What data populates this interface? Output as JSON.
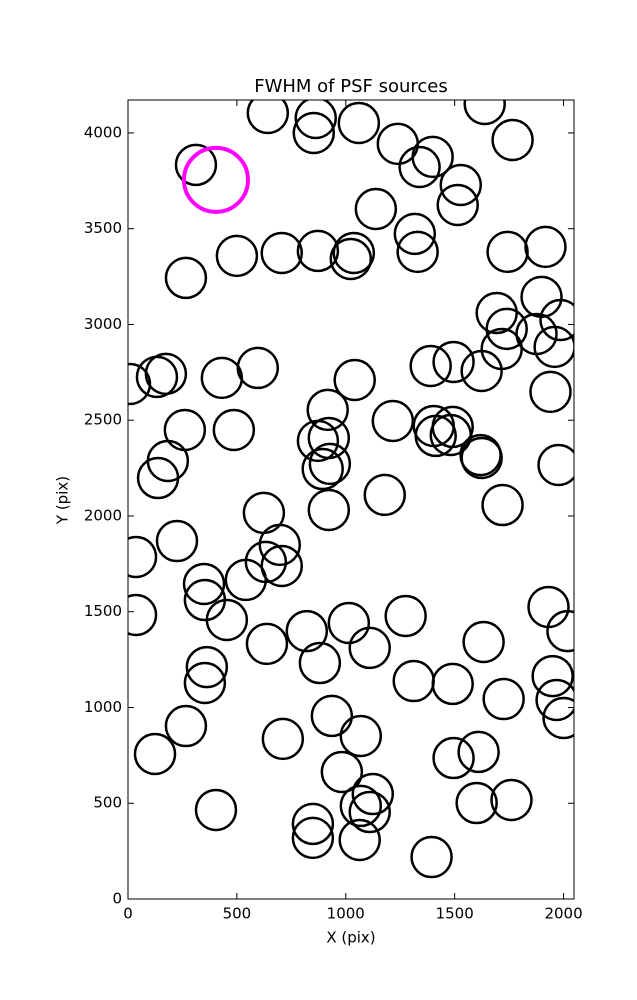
{
  "chart_data": {
    "type": "scatter",
    "title": "FWHM of PSF sources",
    "x_label": "X (pix)",
    "y_label": "Y (pix)",
    "xlim": [
      0,
      2048
    ],
    "ylim": [
      0,
      4172
    ],
    "xticks": [
      0,
      500,
      1000,
      1500,
      2000
    ],
    "yticks": [
      0,
      500,
      1000,
      1500,
      2000,
      2500,
      3000,
      3500,
      4000
    ],
    "series": [
      {
        "color": "#000000",
        "x": [
          312,
          642,
          862,
          853,
          1060,
          1638,
          1766,
          1239,
          1339,
          1399,
          1528,
          1514,
          1138,
          1317,
          1330,
          500,
          706,
          872,
          1037,
          1023,
          266,
          1743,
          1917,
          1899,
          1693,
          1739,
          1876,
          1986,
          1959,
          1716,
          1624,
          1495,
          1390,
          1041,
          596,
          431,
          174,
          133,
          9,
          1940,
          261,
          486,
          917,
          922,
          872,
          927,
          894,
          922,
          1216,
          1404,
          1491,
          1413,
          1482,
          1619,
          1624,
          183,
          138,
          1977,
          1720,
          1179,
          624,
          697,
          633,
          706,
          37,
          225,
          349,
          353,
          541,
          454,
          37,
          821,
          1014,
          1110,
          1275,
          1633,
          1931,
          2018,
          362,
          353,
          881,
          638,
          1312,
          1491,
          1725,
          1950,
          1968,
          2000,
          266,
          124,
          711,
          936,
          1069,
          982,
          1124,
          1069,
          1110,
          1064,
          849,
          849,
          404,
          1495,
          1610,
          1601,
          1761,
          1394
        ],
        "y": [
          3833,
          4104,
          4078,
          4000,
          4052,
          4151,
          3963,
          3943,
          3822,
          3875,
          3728,
          3624,
          3603,
          3473,
          3379,
          3358,
          3373,
          3384,
          3373,
          3342,
          3243,
          3379,
          3405,
          3144,
          3060,
          2977,
          2950,
          3023,
          2883,
          2872,
          2757,
          2804,
          2783,
          2710,
          2773,
          2721,
          2742,
          2726,
          2689,
          2648,
          2449,
          2449,
          2554,
          2407,
          2392,
          2272,
          2245,
          2031,
          2496,
          2470,
          2465,
          2418,
          2423,
          2318,
          2303,
          2287,
          2198,
          2266,
          2057,
          2110,
          2016,
          1849,
          1760,
          1739,
          1786,
          1869,
          1645,
          1561,
          1666,
          1457,
          1483,
          1399,
          1441,
          1311,
          1478,
          1342,
          1525,
          1399,
          1211,
          1128,
          1232,
          1332,
          1138,
          1123,
          1044,
          1164,
          1039,
          945,
          903,
          757,
          836,
          956,
          851,
          663,
          548,
          486,
          454,
          308,
          392,
          319,
          465,
          736,
          768,
          501,
          517,
          219
        ]
      },
      {
        "color": "#ff00ff",
        "x": [
          404
        ],
        "y": [
          3755
        ]
      }
    ]
  }
}
